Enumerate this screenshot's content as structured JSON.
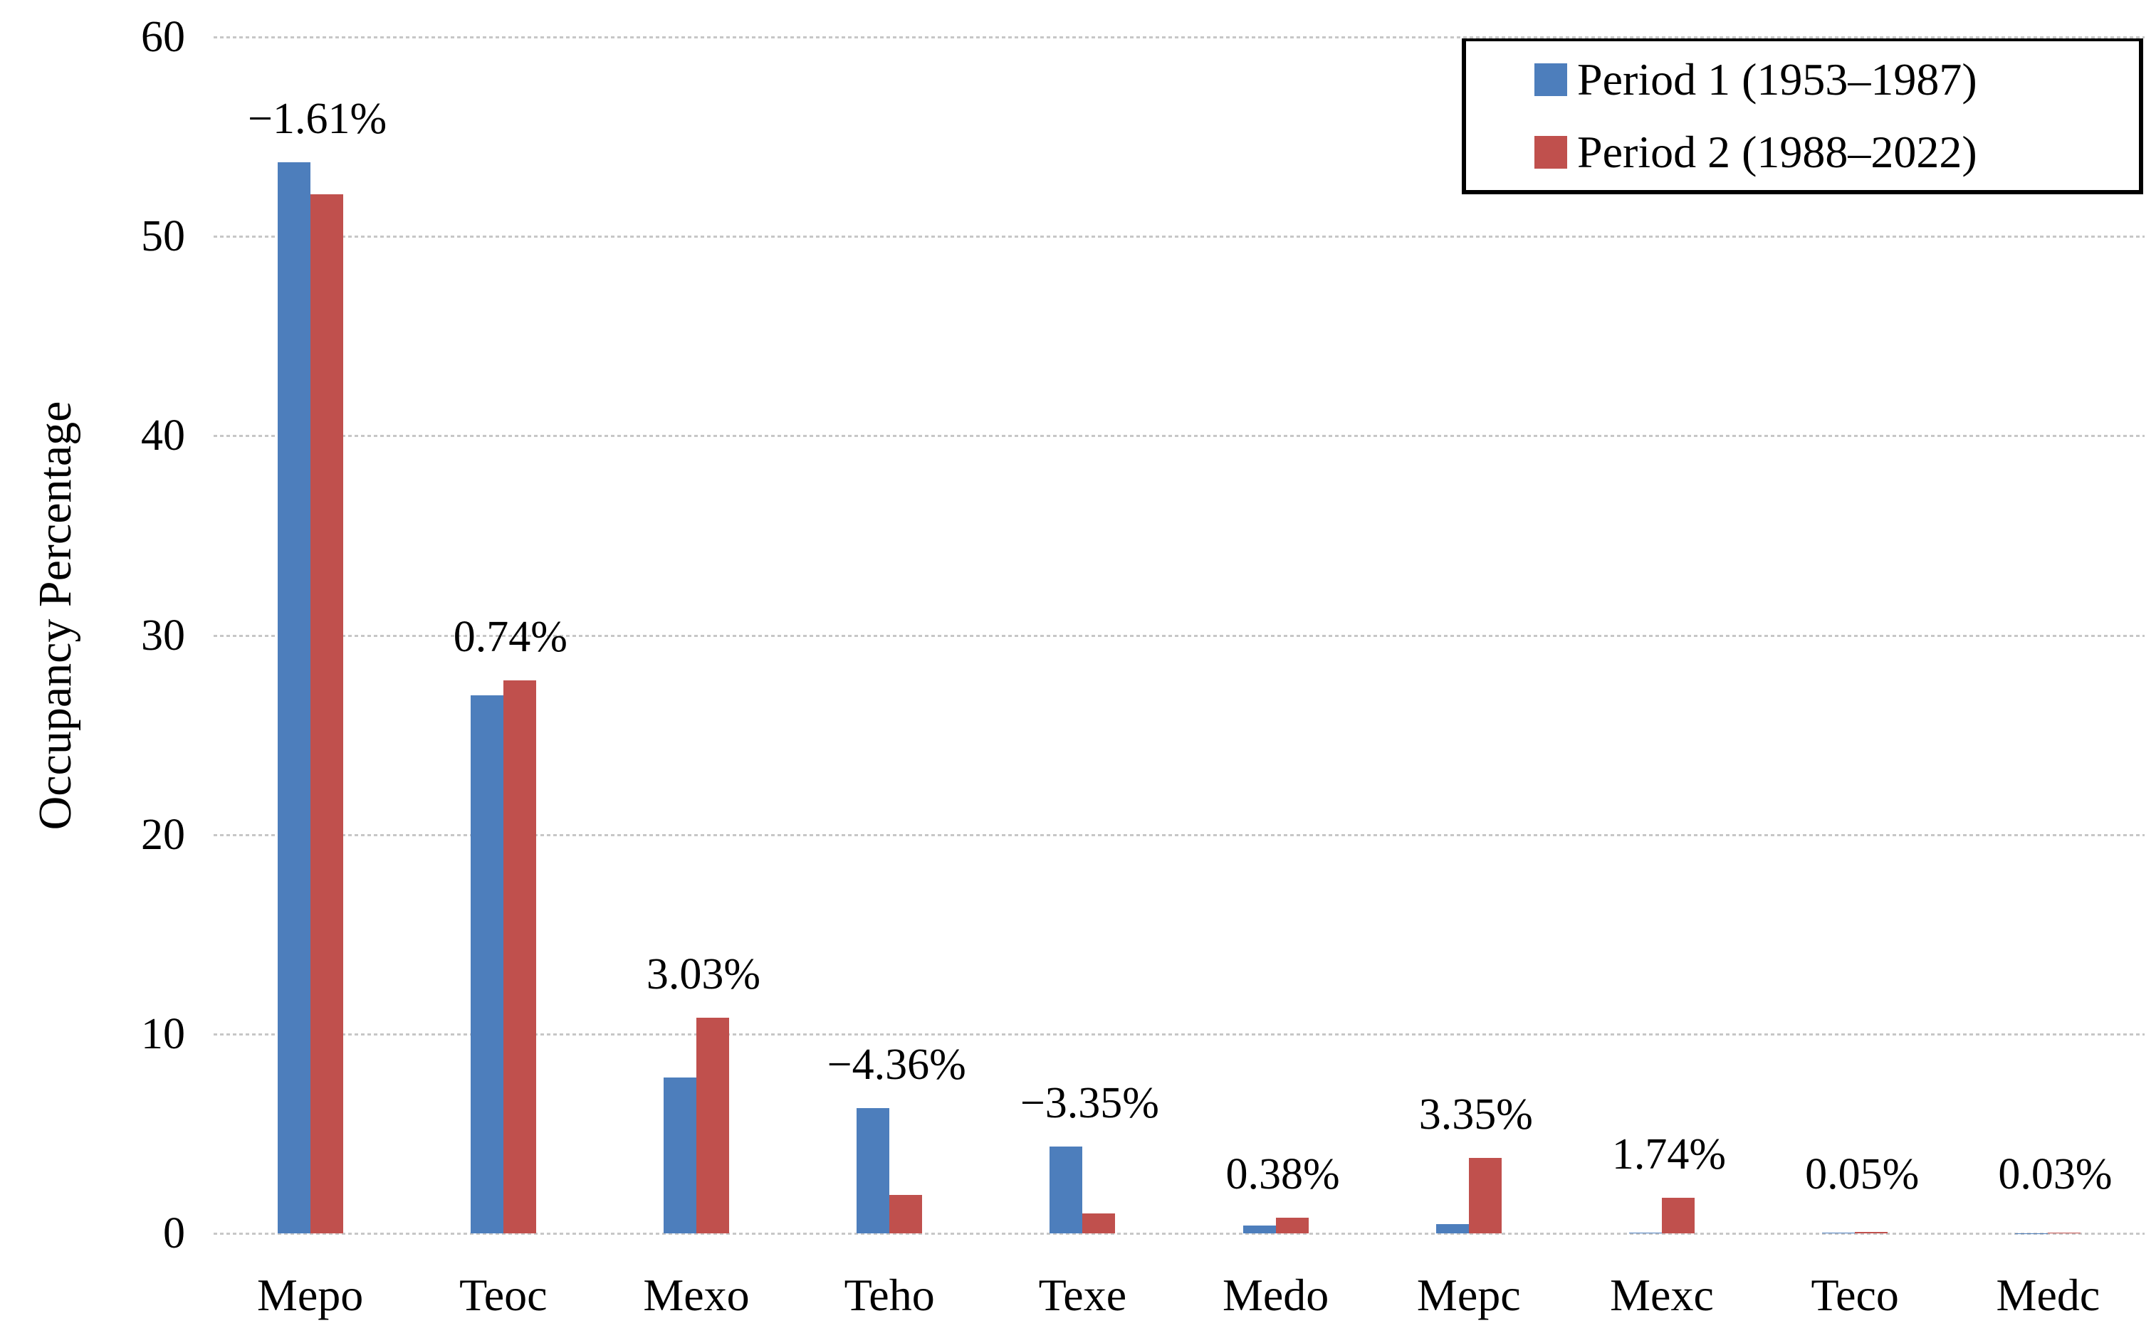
{
  "chart_data": {
    "type": "bar",
    "title": "",
    "xlabel": "",
    "ylabel": "Occupancy Percentage",
    "ylim": [
      0,
      60
    ],
    "ytick_step": 10,
    "yticks": [
      "0",
      "10",
      "20",
      "30",
      "40",
      "50",
      "60"
    ],
    "grid": true,
    "legend_position": "top-right",
    "categories": [
      "Mepo",
      "Teoc",
      "Mexo",
      "Teho",
      "Texe",
      "Medo",
      "Mepc",
      "Mexc",
      "Teco",
      "Medc"
    ],
    "series": [
      {
        "name": "Period 1 (1953–1987)",
        "color": "#4D7EBC",
        "values": [
          53.72,
          27.0,
          7.8,
          6.3,
          4.35,
          0.4,
          0.45,
          0.05,
          0.02,
          0.01
        ]
      },
      {
        "name": "Period 2 (1988–2022)",
        "color": "#C0504D",
        "values": [
          52.11,
          27.74,
          10.83,
          1.94,
          1.0,
          0.78,
          3.8,
          1.79,
          0.07,
          0.04
        ]
      }
    ],
    "bar_labels": [
      "−1.61%",
      "0.74%",
      "3.03%",
      "−4.36%",
      "−3.35%",
      "0.38%",
      "3.35%",
      "1.74%",
      "0.05%",
      "0.03%"
    ],
    "colors": {
      "grid": "#c7c7c7",
      "text": "#000000",
      "background": "#ffffff",
      "legend_border": "#000000"
    }
  }
}
